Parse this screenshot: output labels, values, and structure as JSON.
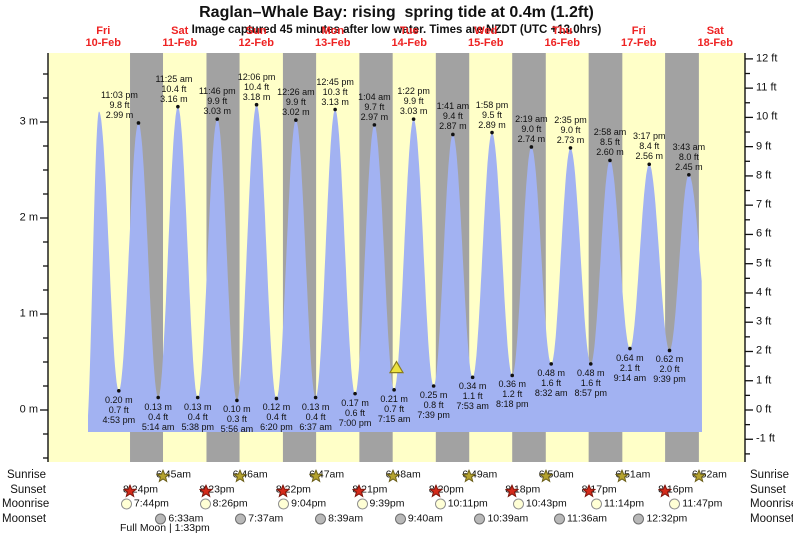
{
  "title": "Raglan–Whale Bay: rising  spring tide at 0.4m (1.2ft)",
  "subtitle": "Image captured 45 minutes after low water. Times are NZDT (UTC +13.0hrs)",
  "colors": {
    "day_band": "#ffffc8",
    "night_band": "#a2a2a2",
    "tide_fill": "#a2b2f2",
    "day_label_red": "#ee2222",
    "axis_ink": "#111111",
    "marker_fill": "#ece23e",
    "marker_border": "#8a7d1e",
    "sunrise_star_fill": "#b5a32f",
    "sunrise_star_border": "#6b5f1a",
    "sunset_star_fill": "#d42a1a",
    "sunset_star_border": "#7a150c",
    "moonrise_fill": "#ffffd5",
    "moonrise_border": "#8f8f8f",
    "moonset_fill": "#b8b8b8",
    "moonset_border": "#6e6e6e"
  },
  "chart_data": {
    "type": "area",
    "title": "Raglan–Whale Bay: rising  spring tide at 0.4m (1.2ft)",
    "subtitle": "Image captured 45 minutes after low water. Times are NZDT (UTC +13.0hrs)",
    "ylabel_left_unit": "m",
    "ylabel_right_unit": "ft",
    "left_axis_major_ticks_m": [
      0,
      1,
      2,
      3
    ],
    "right_axis_major_ticks_ft": [
      -1,
      0,
      1,
      2,
      3,
      4,
      5,
      6,
      7,
      8,
      9,
      10,
      11,
      12
    ],
    "ylim_m": [
      -0.55,
      3.72
    ],
    "grid": false,
    "days": [
      {
        "weekday": "Fri",
        "date": "10-Feb"
      },
      {
        "weekday": "Sat",
        "date": "11-Feb"
      },
      {
        "weekday": "Sun",
        "date": "12-Feb"
      },
      {
        "weekday": "Mon",
        "date": "13-Feb"
      },
      {
        "weekday": "Tue",
        "date": "14-Feb"
      },
      {
        "weekday": "Wed",
        "date": "15-Feb"
      },
      {
        "weekday": "Thu",
        "date": "16-Feb"
      },
      {
        "weekday": "Fri",
        "date": "17-Feb"
      },
      {
        "weekday": "Sat",
        "date": "18-Feb"
      }
    ],
    "tides": [
      {
        "day": 0,
        "time": "10:40 am",
        "type": "high",
        "height_m": 3.11,
        "height_ft": 10.2,
        "annotated": false
      },
      {
        "day": 0,
        "time": "4:53 pm",
        "type": "low",
        "height_m": 0.2,
        "height_ft": 0.7,
        "annotated": true
      },
      {
        "day": 0,
        "time": "11:03 pm",
        "type": "high",
        "height_m": 2.99,
        "height_ft": 9.8,
        "annotated": true
      },
      {
        "day": 1,
        "time": "5:14 am",
        "type": "low",
        "height_m": 0.13,
        "height_ft": 0.4,
        "annotated": true
      },
      {
        "day": 1,
        "time": "11:25 am",
        "type": "high",
        "height_m": 3.16,
        "height_ft": 10.4,
        "annotated": true
      },
      {
        "day": 1,
        "time": "5:38 pm",
        "type": "low",
        "height_m": 0.13,
        "height_ft": 0.4,
        "annotated": true
      },
      {
        "day": 1,
        "time": "11:46 pm",
        "type": "high",
        "height_m": 3.03,
        "height_ft": 9.9,
        "annotated": true
      },
      {
        "day": 2,
        "time": "5:56 am",
        "type": "low",
        "height_m": 0.1,
        "height_ft": 0.3,
        "annotated": true
      },
      {
        "day": 2,
        "time": "12:06 pm",
        "type": "high",
        "height_m": 3.18,
        "height_ft": 10.4,
        "annotated": true
      },
      {
        "day": 2,
        "time": "6:20 pm",
        "type": "low",
        "height_m": 0.12,
        "height_ft": 0.4,
        "annotated": true
      },
      {
        "day": 3,
        "time": "12:26 am",
        "type": "high",
        "height_m": 3.02,
        "height_ft": 9.9,
        "annotated": true
      },
      {
        "day": 3,
        "time": "6:37 am",
        "type": "low",
        "height_m": 0.13,
        "height_ft": 0.4,
        "annotated": true
      },
      {
        "day": 3,
        "time": "12:45 pm",
        "type": "high",
        "height_m": 3.13,
        "height_ft": 10.3,
        "annotated": true
      },
      {
        "day": 3,
        "time": "7:00 pm",
        "type": "low",
        "height_m": 0.17,
        "height_ft": 0.6,
        "annotated": true
      },
      {
        "day": 4,
        "time": "1:04 am",
        "type": "high",
        "height_m": 2.97,
        "height_ft": 9.7,
        "annotated": true
      },
      {
        "day": 4,
        "time": "7:15 am",
        "type": "low",
        "height_m": 0.21,
        "height_ft": 0.7,
        "annotated": true
      },
      {
        "day": 4,
        "time": "1:22 pm",
        "type": "high",
        "height_m": 3.03,
        "height_ft": 9.9,
        "annotated": true
      },
      {
        "day": 4,
        "time": "7:39 pm",
        "type": "low",
        "height_m": 0.25,
        "height_ft": 0.8,
        "annotated": true
      },
      {
        "day": 5,
        "time": "1:41 am",
        "type": "high",
        "height_m": 2.87,
        "height_ft": 9.4,
        "annotated": true
      },
      {
        "day": 5,
        "time": "7:53 am",
        "type": "low",
        "height_m": 0.34,
        "height_ft": 1.1,
        "annotated": true
      },
      {
        "day": 5,
        "time": "1:58 pm",
        "type": "high",
        "height_m": 2.89,
        "height_ft": 9.5,
        "annotated": true
      },
      {
        "day": 5,
        "time": "8:18 pm",
        "type": "low",
        "height_m": 0.36,
        "height_ft": 1.2,
        "annotated": true
      },
      {
        "day": 6,
        "time": "2:19 am",
        "type": "high",
        "height_m": 2.74,
        "height_ft": 9.0,
        "annotated": true
      },
      {
        "day": 6,
        "time": "8:32 am",
        "type": "low",
        "height_m": 0.48,
        "height_ft": 1.6,
        "annotated": true
      },
      {
        "day": 6,
        "time": "2:35 pm",
        "type": "high",
        "height_m": 2.73,
        "height_ft": 9.0,
        "annotated": true
      },
      {
        "day": 6,
        "time": "8:57 pm",
        "type": "low",
        "height_m": 0.48,
        "height_ft": 1.6,
        "annotated": true
      },
      {
        "day": 7,
        "time": "2:58 am",
        "type": "high",
        "height_m": 2.6,
        "height_ft": 8.5,
        "annotated": true
      },
      {
        "day": 7,
        "time": "9:14 am",
        "type": "low",
        "height_m": 0.64,
        "height_ft": 2.1,
        "annotated": true
      },
      {
        "day": 7,
        "time": "3:17 pm",
        "type": "high",
        "height_m": 2.56,
        "height_ft": 8.4,
        "annotated": true
      },
      {
        "day": 7,
        "time": "9:39 pm",
        "type": "low",
        "height_m": 0.62,
        "height_ft": 2.0,
        "annotated": true
      },
      {
        "day": 8,
        "time": "3:43 am",
        "type": "high",
        "height_m": 2.45,
        "height_ft": 8.0,
        "annotated": true
      }
    ],
    "current_marker": {
      "day": 4,
      "time": "8:00 am",
      "height_m": 0.4
    },
    "sun_moon": {
      "rows": [
        {
          "label": "Sunrise",
          "icon": "sunrise-star",
          "events": [
            {
              "day": 1,
              "time": "6:45am"
            },
            {
              "day": 2,
              "time": "6:46am"
            },
            {
              "day": 3,
              "time": "6:47am"
            },
            {
              "day": 4,
              "time": "6:48am"
            },
            {
              "day": 5,
              "time": "6:49am"
            },
            {
              "day": 6,
              "time": "6:50am"
            },
            {
              "day": 7,
              "time": "6:51am"
            },
            {
              "day": 8,
              "time": "6:52am"
            }
          ]
        },
        {
          "label": "Sunset",
          "icon": "sunset-star",
          "events": [
            {
              "day": 0,
              "time": "8:24pm"
            },
            {
              "day": 1,
              "time": "8:23pm"
            },
            {
              "day": 2,
              "time": "8:22pm"
            },
            {
              "day": 3,
              "time": "8:21pm"
            },
            {
              "day": 4,
              "time": "8:20pm"
            },
            {
              "day": 5,
              "time": "8:18pm"
            },
            {
              "day": 6,
              "time": "8:17pm"
            },
            {
              "day": 7,
              "time": "8:16pm"
            }
          ]
        },
        {
          "label": "Moonrise",
          "icon": "moonrise-circle",
          "events": [
            {
              "day": 0,
              "time": "7:44pm"
            },
            {
              "day": 1,
              "time": "8:26pm"
            },
            {
              "day": 2,
              "time": "9:04pm"
            },
            {
              "day": 3,
              "time": "9:39pm"
            },
            {
              "day": 4,
              "time": "10:11pm"
            },
            {
              "day": 5,
              "time": "10:43pm"
            },
            {
              "day": 6,
              "time": "11:14pm"
            },
            {
              "day": 7,
              "time": "11:47pm"
            }
          ]
        },
        {
          "label": "Moonset",
          "icon": "moonset-circle",
          "events": [
            {
              "day": 1,
              "time": "6:33am"
            },
            {
              "day": 2,
              "time": "7:37am"
            },
            {
              "day": 3,
              "time": "8:39am"
            },
            {
              "day": 4,
              "time": "9:40am"
            },
            {
              "day": 5,
              "time": "10:39am"
            },
            {
              "day": 6,
              "time": "11:36am"
            },
            {
              "day": 7,
              "time": "12:32pm"
            }
          ]
        }
      ],
      "footnote": "Full Moon | 1:33pm"
    }
  }
}
